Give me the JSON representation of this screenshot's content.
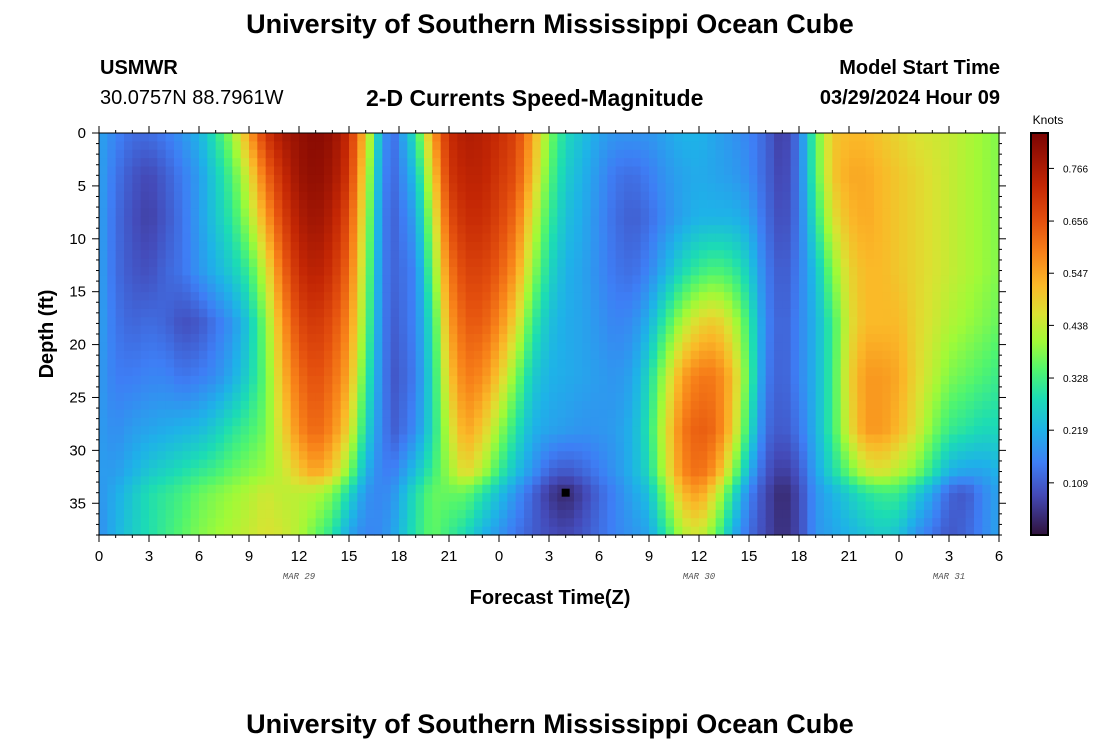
{
  "page": {
    "title_top": "University of Southern Mississippi Ocean Cube",
    "title_bottom": "University of Southern Mississippi Ocean Cube",
    "station_id": "USMWR",
    "coords": "30.0757N  88.7961W",
    "subtitle": "2-D Currents Speed-Magnitude",
    "model_start_label": "Model Start Time",
    "model_start_value": "03/29/2024 Hour 09"
  },
  "chart_data": {
    "type": "heatmap",
    "title": "2-D Currents Speed-Magnitude",
    "xlabel": "Forecast Time(Z)",
    "ylabel": "Depth (ft)",
    "x_range_hours": [
      0,
      54
    ],
    "y_range_ft": [
      0,
      38
    ],
    "y_inverted": true,
    "x_tick_labels": [
      "0",
      "3",
      "6",
      "9",
      "12",
      "15",
      "18",
      "21",
      "0",
      "3",
      "6",
      "9",
      "12",
      "15",
      "18",
      "21",
      "0",
      "3",
      "6"
    ],
    "y_tick_labels": [
      "0",
      "5",
      "10",
      "15",
      "20",
      "25",
      "30",
      "35"
    ],
    "y_ticks": [
      0,
      5,
      10,
      15,
      20,
      25,
      30,
      35
    ],
    "date_labels": [
      {
        "text": "MAR 29",
        "hour": 12
      },
      {
        "text": "MAR 30",
        "hour": 36
      },
      {
        "text": "MAR 31",
        "hour": 51
      }
    ],
    "colorbar": {
      "title": "Knots",
      "min": 0.0,
      "max": 0.84,
      "tick_labels": [
        "0.766",
        "0.656",
        "0.547",
        "0.438",
        "0.328",
        "0.219",
        "0.109"
      ],
      "ticks": [
        0.766,
        0.656,
        0.547,
        0.438,
        0.328,
        0.219,
        0.109
      ]
    },
    "grid_columns": [
      {
        "t": 0,
        "p": [
          0.2,
          0.2,
          0.2,
          0.2,
          0.2,
          0.19,
          0.19,
          0.19,
          0.18,
          0.17
        ]
      },
      {
        "t": 1,
        "p": [
          0.16,
          0.14,
          0.13,
          0.13,
          0.14,
          0.15,
          0.17,
          0.19,
          0.21,
          0.22
        ]
      },
      {
        "t": 2,
        "p": [
          0.13,
          0.1,
          0.09,
          0.1,
          0.12,
          0.15,
          0.19,
          0.22,
          0.25,
          0.26
        ]
      },
      {
        "t": 3,
        "p": [
          0.13,
          0.08,
          0.07,
          0.09,
          0.13,
          0.16,
          0.2,
          0.25,
          0.29,
          0.29
        ]
      },
      {
        "t": 4,
        "p": [
          0.15,
          0.11,
          0.1,
          0.12,
          0.12,
          0.16,
          0.21,
          0.27,
          0.31,
          0.32
        ]
      },
      {
        "t": 5,
        "p": [
          0.18,
          0.15,
          0.14,
          0.14,
          0.09,
          0.14,
          0.22,
          0.29,
          0.33,
          0.35
        ]
      },
      {
        "t": 6,
        "p": [
          0.22,
          0.19,
          0.19,
          0.18,
          0.1,
          0.15,
          0.23,
          0.31,
          0.36,
          0.38
        ]
      },
      {
        "t": 7,
        "p": [
          0.3,
          0.26,
          0.25,
          0.22,
          0.14,
          0.17,
          0.26,
          0.33,
          0.38,
          0.4
        ]
      },
      {
        "t": 8,
        "p": [
          0.4,
          0.34,
          0.31,
          0.26,
          0.18,
          0.21,
          0.3,
          0.36,
          0.4,
          0.42
        ]
      },
      {
        "t": 9,
        "p": [
          0.55,
          0.46,
          0.41,
          0.32,
          0.25,
          0.27,
          0.33,
          0.38,
          0.42,
          0.44
        ]
      },
      {
        "t": 10,
        "p": [
          0.7,
          0.62,
          0.55,
          0.45,
          0.38,
          0.36,
          0.37,
          0.4,
          0.45,
          0.46
        ]
      },
      {
        "t": 11,
        "p": [
          0.77,
          0.72,
          0.68,
          0.62,
          0.56,
          0.52,
          0.48,
          0.44,
          0.43,
          0.45
        ]
      },
      {
        "t": 12,
        "p": [
          0.8,
          0.79,
          0.76,
          0.72,
          0.67,
          0.62,
          0.58,
          0.5,
          0.43,
          0.42
        ]
      },
      {
        "t": 13,
        "p": [
          0.82,
          0.81,
          0.79,
          0.75,
          0.7,
          0.66,
          0.63,
          0.55,
          0.42,
          0.36
        ]
      },
      {
        "t": 14,
        "p": [
          0.8,
          0.78,
          0.75,
          0.71,
          0.66,
          0.62,
          0.58,
          0.5,
          0.38,
          0.3
        ]
      },
      {
        "t": 15,
        "p": [
          0.72,
          0.7,
          0.66,
          0.62,
          0.58,
          0.54,
          0.48,
          0.38,
          0.28,
          0.2
        ]
      },
      {
        "t": 16,
        "p": [
          0.5,
          0.46,
          0.43,
          0.4,
          0.37,
          0.33,
          0.28,
          0.22,
          0.18,
          0.16
        ]
      },
      {
        "t": 17,
        "p": [
          0.18,
          0.16,
          0.15,
          0.15,
          0.15,
          0.15,
          0.15,
          0.15,
          0.16,
          0.17
        ]
      },
      {
        "t": 17.8,
        "p": [
          0.14,
          0.13,
          0.12,
          0.12,
          0.11,
          0.1,
          0.11,
          0.16,
          0.19,
          0.21
        ]
      },
      {
        "t": 19,
        "p": [
          0.3,
          0.24,
          0.2,
          0.16,
          0.16,
          0.15,
          0.17,
          0.24,
          0.29,
          0.3
        ]
      },
      {
        "t": 20,
        "p": [
          0.55,
          0.48,
          0.42,
          0.36,
          0.3,
          0.28,
          0.28,
          0.32,
          0.36,
          0.36
        ]
      },
      {
        "t": 21,
        "p": [
          0.72,
          0.7,
          0.66,
          0.6,
          0.55,
          0.5,
          0.44,
          0.4,
          0.36,
          0.32
        ]
      },
      {
        "t": 22,
        "p": [
          0.76,
          0.74,
          0.72,
          0.68,
          0.64,
          0.6,
          0.55,
          0.48,
          0.36,
          0.28
        ]
      },
      {
        "t": 23,
        "p": [
          0.75,
          0.74,
          0.72,
          0.68,
          0.64,
          0.58,
          0.5,
          0.42,
          0.3,
          0.22
        ]
      },
      {
        "t": 24,
        "p": [
          0.72,
          0.7,
          0.68,
          0.64,
          0.58,
          0.5,
          0.4,
          0.32,
          0.24,
          0.18
        ]
      },
      {
        "t": 25,
        "p": [
          0.68,
          0.66,
          0.62,
          0.56,
          0.48,
          0.38,
          0.3,
          0.24,
          0.18,
          0.14
        ]
      },
      {
        "t": 26,
        "p": [
          0.55,
          0.52,
          0.46,
          0.4,
          0.32,
          0.26,
          0.22,
          0.18,
          0.12,
          0.11
        ]
      },
      {
        "t": 27,
        "p": [
          0.38,
          0.35,
          0.32,
          0.28,
          0.24,
          0.22,
          0.2,
          0.12,
          0.06,
          0.09
        ]
      },
      {
        "t": 28,
        "p": [
          0.28,
          0.26,
          0.24,
          0.22,
          0.21,
          0.21,
          0.19,
          0.1,
          0.03,
          0.08
        ]
      },
      {
        "t": 29,
        "p": [
          0.24,
          0.22,
          0.21,
          0.2,
          0.2,
          0.2,
          0.18,
          0.12,
          0.07,
          0.1
        ]
      },
      {
        "t": 30,
        "p": [
          0.2,
          0.18,
          0.17,
          0.17,
          0.18,
          0.19,
          0.18,
          0.15,
          0.12,
          0.13
        ]
      },
      {
        "t": 31,
        "p": [
          0.18,
          0.14,
          0.13,
          0.14,
          0.16,
          0.18,
          0.19,
          0.18,
          0.16,
          0.16
        ]
      },
      {
        "t": 32,
        "p": [
          0.18,
          0.13,
          0.11,
          0.13,
          0.17,
          0.2,
          0.22,
          0.22,
          0.2,
          0.18
        ]
      },
      {
        "t": 33,
        "p": [
          0.18,
          0.15,
          0.13,
          0.16,
          0.22,
          0.28,
          0.3,
          0.28,
          0.24,
          0.2
        ]
      },
      {
        "t": 34,
        "p": [
          0.2,
          0.18,
          0.17,
          0.22,
          0.32,
          0.42,
          0.46,
          0.44,
          0.38,
          0.3
        ]
      },
      {
        "t": 35,
        "p": [
          0.22,
          0.2,
          0.2,
          0.28,
          0.42,
          0.55,
          0.6,
          0.58,
          0.52,
          0.42
        ]
      },
      {
        "t": 36,
        "p": [
          0.22,
          0.21,
          0.22,
          0.32,
          0.48,
          0.6,
          0.64,
          0.62,
          0.56,
          0.45
        ]
      },
      {
        "t": 37,
        "p": [
          0.2,
          0.2,
          0.22,
          0.34,
          0.5,
          0.6,
          0.62,
          0.56,
          0.46,
          0.36
        ]
      },
      {
        "t": 38,
        "p": [
          0.18,
          0.19,
          0.22,
          0.32,
          0.44,
          0.52,
          0.5,
          0.4,
          0.3,
          0.22
        ]
      },
      {
        "t": 39,
        "p": [
          0.16,
          0.17,
          0.2,
          0.26,
          0.32,
          0.34,
          0.3,
          0.22,
          0.16,
          0.13
        ]
      },
      {
        "t": 40,
        "p": [
          0.12,
          0.12,
          0.13,
          0.15,
          0.16,
          0.15,
          0.13,
          0.1,
          0.08,
          0.08
        ]
      },
      {
        "t": 41,
        "p": [
          0.06,
          0.07,
          0.08,
          0.1,
          0.11,
          0.11,
          0.1,
          0.06,
          0.03,
          0.04
        ]
      },
      {
        "t": 42,
        "p": [
          0.14,
          0.14,
          0.14,
          0.15,
          0.16,
          0.16,
          0.14,
          0.1,
          0.08,
          0.08
        ]
      },
      {
        "t": 43,
        "p": [
          0.35,
          0.34,
          0.3,
          0.24,
          0.22,
          0.22,
          0.22,
          0.2,
          0.18,
          0.18
        ]
      },
      {
        "t": 44,
        "p": [
          0.5,
          0.5,
          0.46,
          0.38,
          0.32,
          0.32,
          0.32,
          0.28,
          0.22,
          0.2
        ]
      },
      {
        "t": 45,
        "p": [
          0.52,
          0.54,
          0.52,
          0.48,
          0.46,
          0.48,
          0.46,
          0.36,
          0.26,
          0.22
        ]
      },
      {
        "t": 46,
        "p": [
          0.52,
          0.54,
          0.54,
          0.52,
          0.52,
          0.56,
          0.56,
          0.44,
          0.3,
          0.24
        ]
      },
      {
        "t": 47,
        "p": [
          0.5,
          0.52,
          0.52,
          0.52,
          0.52,
          0.56,
          0.56,
          0.46,
          0.32,
          0.26
        ]
      },
      {
        "t": 48,
        "p": [
          0.48,
          0.5,
          0.5,
          0.5,
          0.52,
          0.54,
          0.52,
          0.42,
          0.32,
          0.24
        ]
      },
      {
        "t": 49,
        "p": [
          0.46,
          0.48,
          0.48,
          0.48,
          0.48,
          0.48,
          0.46,
          0.38,
          0.26,
          0.18
        ]
      },
      {
        "t": 50,
        "p": [
          0.45,
          0.46,
          0.46,
          0.46,
          0.45,
          0.43,
          0.38,
          0.3,
          0.2,
          0.14
        ]
      },
      {
        "t": 51,
        "p": [
          0.44,
          0.44,
          0.44,
          0.44,
          0.42,
          0.38,
          0.32,
          0.22,
          0.12,
          0.1
        ]
      },
      {
        "t": 52,
        "p": [
          0.42,
          0.42,
          0.42,
          0.42,
          0.4,
          0.36,
          0.3,
          0.2,
          0.1,
          0.12
        ]
      },
      {
        "t": 53,
        "p": [
          0.4,
          0.4,
          0.4,
          0.4,
          0.38,
          0.34,
          0.28,
          0.2,
          0.16,
          0.16
        ]
      },
      {
        "t": 54,
        "p": [
          0.38,
          0.38,
          0.38,
          0.38,
          0.36,
          0.32,
          0.28,
          0.22,
          0.2,
          0.2
        ]
      }
    ],
    "grid_depths_ft": [
      0,
      4,
      8,
      13,
      18,
      23,
      28,
      32,
      34,
      38
    ]
  }
}
